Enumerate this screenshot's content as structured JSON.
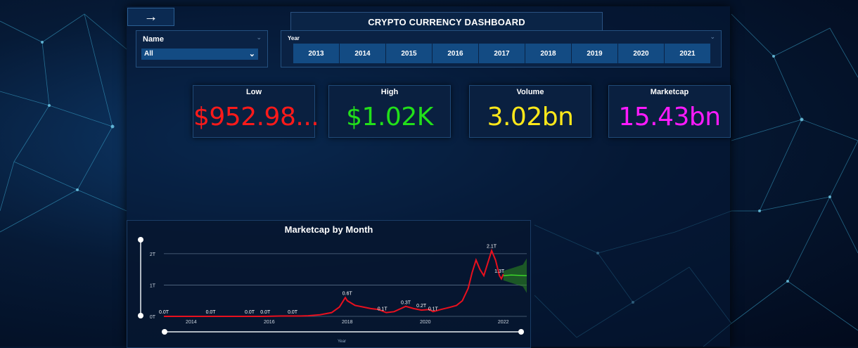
{
  "nav": {
    "back_icon": "arrow-right-icon",
    "back_glyph": "→"
  },
  "title": "CRYPTO CURRENCY DASHBOARD",
  "slicers": {
    "name": {
      "label": "Name",
      "value": "All"
    },
    "year": {
      "label": "Year",
      "options": [
        "2013",
        "2014",
        "2015",
        "2016",
        "2017",
        "2018",
        "2019",
        "2020",
        "2021"
      ]
    }
  },
  "cards": [
    {
      "title": "Low",
      "value": "$952.98...",
      "color": "#ff1a1a"
    },
    {
      "title": "High",
      "value": "$1.02K",
      "color": "#22e01a"
    },
    {
      "title": "Volume",
      "value": "3.02bn",
      "color": "#ffe81a"
    },
    {
      "title": "Marketcap",
      "value": "15.43bn",
      "color": "#ff1aff"
    }
  ],
  "chart_data": {
    "type": "line",
    "title": "Marketcap by Month",
    "xlabel": "Year",
    "ylabel": "",
    "x_ticks": [
      "2014",
      "2016",
      "2018",
      "2020",
      "2022"
    ],
    "y_ticks": [
      "0T",
      "1T",
      "2T"
    ],
    "ylim": [
      0,
      2.2
    ],
    "xlim": [
      2013.3,
      2022.6
    ],
    "grid": true,
    "series": [
      {
        "color": "#e8101e",
        "x": [
          2013.3,
          2013.8,
          2014.3,
          2014.8,
          2015.3,
          2015.8,
          2016.3,
          2016.8,
          2017.0,
          2017.3,
          2017.6,
          2017.8,
          2017.95,
          2018.0,
          2018.2,
          2018.4,
          2018.6,
          2018.8,
          2019.0,
          2019.2,
          2019.5,
          2019.7,
          2019.9,
          2020.1,
          2020.2,
          2020.4,
          2020.6,
          2020.8,
          2020.95,
          2021.1,
          2021.2,
          2021.3,
          2021.4,
          2021.5,
          2021.6,
          2021.7,
          2021.8,
          2021.9,
          2021.95,
          2022.0
        ],
        "y": [
          0.0,
          0.0,
          0.0,
          0.0,
          0.0,
          0.0,
          0.01,
          0.01,
          0.02,
          0.05,
          0.12,
          0.3,
          0.6,
          0.5,
          0.35,
          0.3,
          0.25,
          0.22,
          0.12,
          0.15,
          0.32,
          0.25,
          0.2,
          0.22,
          0.15,
          0.22,
          0.28,
          0.35,
          0.5,
          0.9,
          1.4,
          1.8,
          1.5,
          1.3,
          1.7,
          2.1,
          1.8,
          1.3,
          1.2,
          1.35
        ]
      },
      {
        "color": "#3ddc2a",
        "x": [
          2022.0,
          2022.2,
          2022.4,
          2022.6,
          2022.8,
          2023.0
        ],
        "y": [
          1.3,
          1.32,
          1.31,
          1.3,
          1.31,
          1.3
        ]
      }
    ],
    "forecast_band": {
      "x": [
        2022.0,
        2022.5,
        2023.0
      ],
      "upper": [
        1.45,
        1.65,
        1.85
      ],
      "lower": [
        1.15,
        0.95,
        0.75
      ]
    },
    "data_labels": [
      {
        "x": 2013.3,
        "y": 0.0,
        "text": "0.0T"
      },
      {
        "x": 2014.5,
        "y": 0.0,
        "text": "0.0T"
      },
      {
        "x": 2015.5,
        "y": 0.0,
        "text": "0.0T"
      },
      {
        "x": 2015.9,
        "y": 0.0,
        "text": "0.0T"
      },
      {
        "x": 2016.6,
        "y": 0.0,
        "text": "0.0T"
      },
      {
        "x": 2018.0,
        "y": 0.6,
        "text": "0.6T"
      },
      {
        "x": 2018.9,
        "y": 0.1,
        "text": "0.1T"
      },
      {
        "x": 2019.5,
        "y": 0.3,
        "text": "0.3T"
      },
      {
        "x": 2019.9,
        "y": 0.2,
        "text": "0.2T"
      },
      {
        "x": 2020.2,
        "y": 0.1,
        "text": "0.1T"
      },
      {
        "x": 2021.7,
        "y": 2.1,
        "text": "2.1T"
      },
      {
        "x": 2021.9,
        "y": 1.3,
        "text": "1.3T"
      }
    ]
  }
}
